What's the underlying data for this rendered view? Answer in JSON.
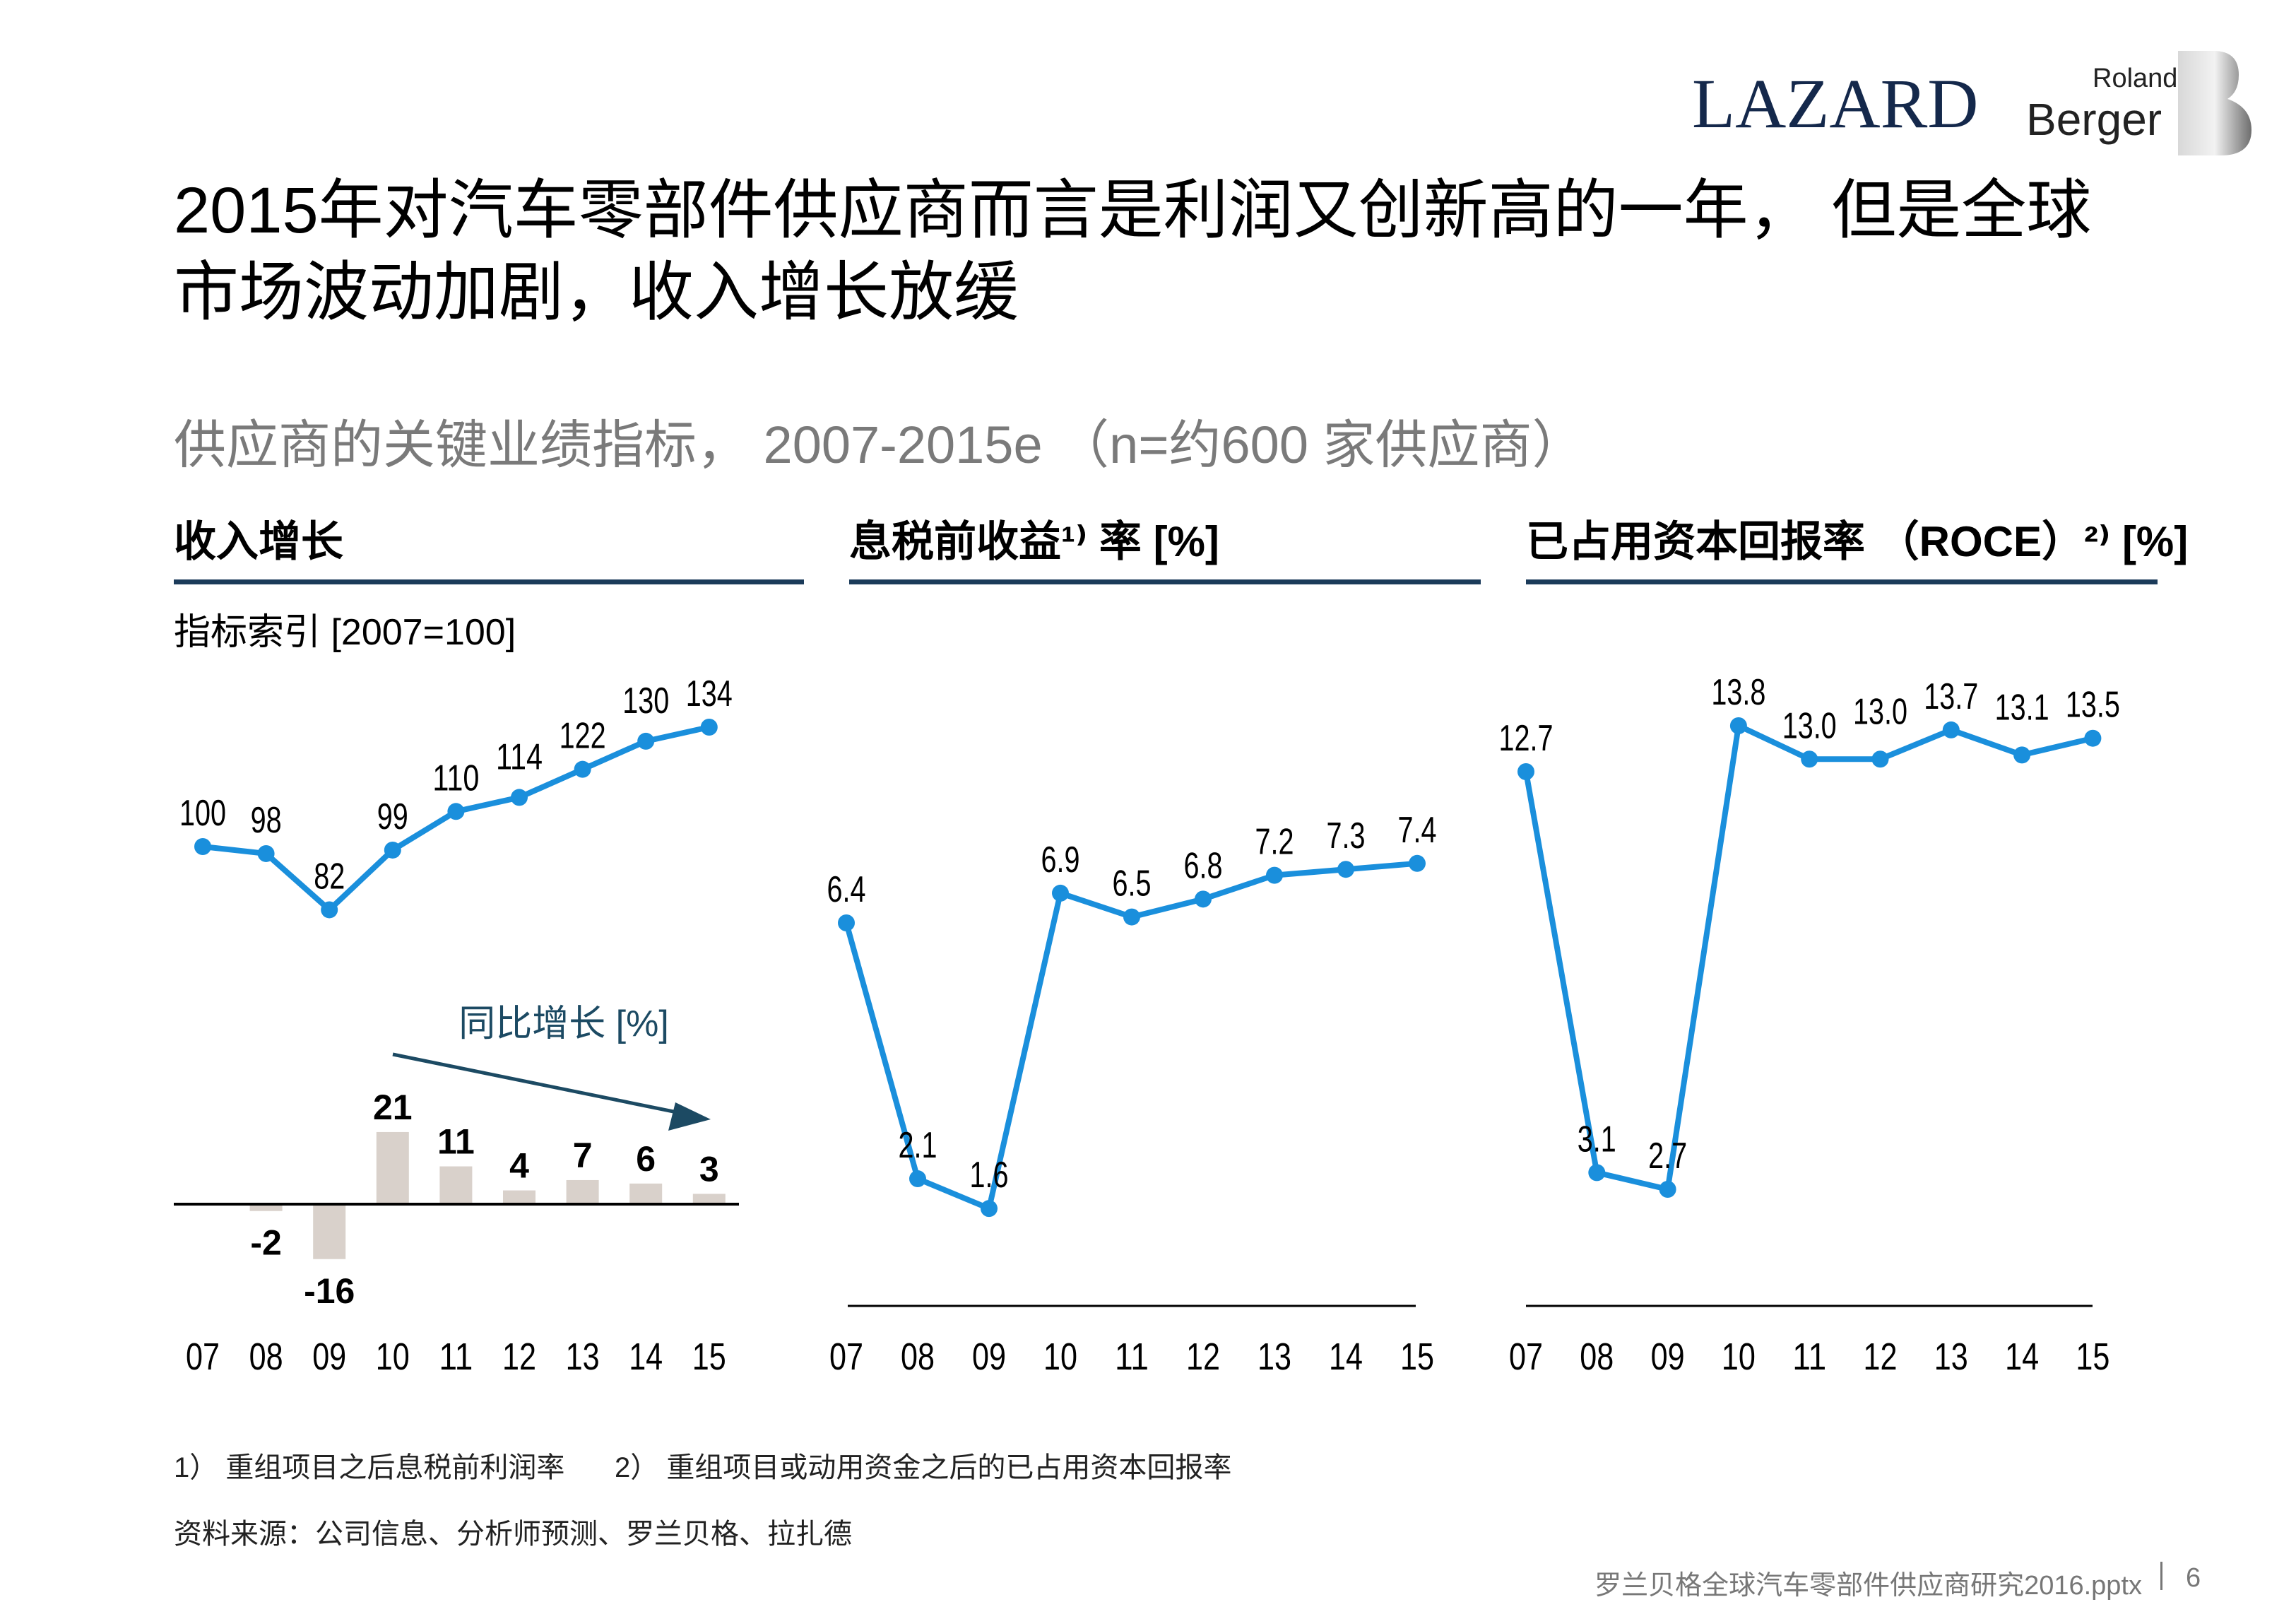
{
  "logos": {
    "lazard": "LAZARD",
    "roland": "Roland",
    "berger": "Berger"
  },
  "title": {
    "line1": "2015年对汽车零部件供应商而言是利润又创新高的一年， 但是全球",
    "line2": "市场波动加剧，收入增长放缓"
  },
  "subtitle": "供应商的关键业绩指标， 2007-2015e （n=约600 家供应商）",
  "sections": [
    {
      "heading": "收入增长",
      "sublabel": "指标索引 [2007=100]"
    },
    {
      "heading": "息税前收益¹⁾ 率 [%]"
    },
    {
      "heading": "已占用资本回报率 （ROCE）²⁾ [%]"
    }
  ],
  "colors": {
    "line": "#1a8fdc",
    "bar": "#d9d1cb",
    "accent": "#1b3b5a",
    "arrow": "#1c4a63"
  },
  "chart_data": [
    {
      "type": "line",
      "title": "收入增长",
      "ylabel": "指标索引 [2007=100]",
      "categories": [
        "07",
        "08",
        "09",
        "10",
        "11",
        "12",
        "13",
        "14",
        "15"
      ],
      "values": [
        100,
        98,
        82,
        99,
        110,
        114,
        122,
        130,
        134
      ],
      "labels": [
        "100",
        "98",
        "82",
        "99",
        "110",
        "114",
        "122",
        "130",
        "134"
      ]
    },
    {
      "type": "bar",
      "title": "同比增长 [%]",
      "categories": [
        "07",
        "08",
        "09",
        "10",
        "11",
        "12",
        "13",
        "14",
        "15"
      ],
      "values": [
        null,
        -2,
        -16,
        21,
        11,
        4,
        7,
        6,
        3
      ],
      "labels": [
        "",
        "-2",
        "-16",
        "21",
        "11",
        "4",
        "7",
        "6",
        "3"
      ]
    },
    {
      "type": "line",
      "title": "息税前收益率 [%]",
      "categories": [
        "07",
        "08",
        "09",
        "10",
        "11",
        "12",
        "13",
        "14",
        "15"
      ],
      "values": [
        6.4,
        2.1,
        1.6,
        6.9,
        6.5,
        6.8,
        7.2,
        7.3,
        7.4
      ],
      "labels": [
        "6.4",
        "2.1",
        "1.6",
        "6.9",
        "6.5",
        "6.8",
        "7.2",
        "7.3",
        "7.4"
      ]
    },
    {
      "type": "line",
      "title": "已占用资本回报率 (ROCE) [%]",
      "categories": [
        "07",
        "08",
        "09",
        "10",
        "11",
        "12",
        "13",
        "14",
        "15"
      ],
      "values": [
        12.7,
        3.1,
        2.7,
        13.8,
        13.0,
        13.0,
        13.7,
        13.1,
        13.5
      ],
      "labels": [
        "12.7",
        "3.1",
        "2.7",
        "13.8",
        "13.0",
        "13.0",
        "13.7",
        "13.1",
        "13.5"
      ]
    }
  ],
  "footnotes": {
    "note1": "1） 重组项目之后息税前利润率",
    "note2": "2） 重组项目或动用资金之后的已占用资本回报率",
    "source": "资料来源：公司信息、分析师预测、罗兰贝格、拉扎德"
  },
  "footer": {
    "file": "罗兰贝格全球汽车零部件供应商研究2016.pptx",
    "page": "6"
  }
}
